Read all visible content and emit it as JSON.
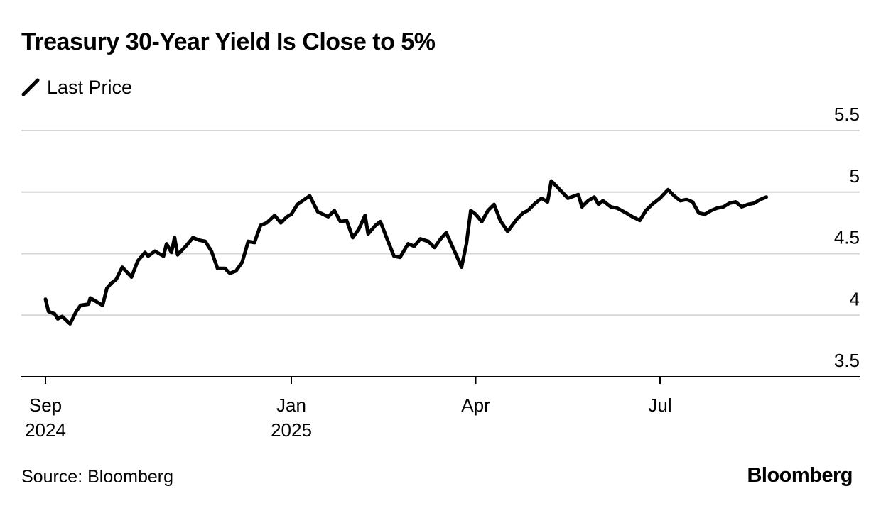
{
  "chart_data": {
    "type": "line",
    "title": "Treasury 30-Year Yield Is Close to 5%",
    "legend": [
      "Last Price"
    ],
    "source": "Source: Bloomberg",
    "brand": "Bloomberg",
    "xlabel": "",
    "ylabel": "",
    "ylim": [
      3.5,
      5.5
    ],
    "yticks": [
      3.5,
      4,
      4.5,
      5,
      5.5
    ],
    "xticks": [
      {
        "month": 0,
        "line1": "Sep",
        "line2": "2024"
      },
      {
        "month": 4,
        "line1": "Jan",
        "line2": "2025"
      },
      {
        "month": 7,
        "line1": "Apr",
        "line2": ""
      },
      {
        "month": 10,
        "line1": "Jul",
        "line2": ""
      }
    ],
    "series": [
      {
        "name": "Last Price",
        "color": "#000000",
        "points": [
          [
            0.0,
            4.13
          ],
          [
            0.05,
            4.03
          ],
          [
            0.15,
            4.01
          ],
          [
            0.2,
            3.97
          ],
          [
            0.27,
            3.99
          ],
          [
            0.4,
            3.93
          ],
          [
            0.5,
            4.03
          ],
          [
            0.57,
            4.08
          ],
          [
            0.7,
            4.09
          ],
          [
            0.73,
            4.14
          ],
          [
            0.83,
            4.11
          ],
          [
            0.93,
            4.08
          ],
          [
            1.0,
            4.22
          ],
          [
            1.07,
            4.26
          ],
          [
            1.15,
            4.29
          ],
          [
            1.25,
            4.39
          ],
          [
            1.4,
            4.31
          ],
          [
            1.5,
            4.44
          ],
          [
            1.62,
            4.51
          ],
          [
            1.67,
            4.48
          ],
          [
            1.78,
            4.52
          ],
          [
            1.92,
            4.48
          ],
          [
            1.97,
            4.58
          ],
          [
            2.05,
            4.51
          ],
          [
            2.1,
            4.63
          ],
          [
            2.15,
            4.49
          ],
          [
            2.3,
            4.57
          ],
          [
            2.4,
            4.63
          ],
          [
            2.5,
            4.61
          ],
          [
            2.6,
            4.6
          ],
          [
            2.7,
            4.52
          ],
          [
            2.8,
            4.38
          ],
          [
            2.92,
            4.38
          ],
          [
            3.0,
            4.34
          ],
          [
            3.1,
            4.36
          ],
          [
            3.2,
            4.43
          ],
          [
            3.3,
            4.6
          ],
          [
            3.4,
            4.59
          ],
          [
            3.5,
            4.73
          ],
          [
            3.6,
            4.75
          ],
          [
            3.73,
            4.81
          ],
          [
            3.83,
            4.75
          ],
          [
            3.93,
            4.8
          ],
          [
            4.0,
            4.82
          ],
          [
            4.1,
            4.9
          ],
          [
            4.3,
            4.97
          ],
          [
            4.43,
            4.84
          ],
          [
            4.6,
            4.8
          ],
          [
            4.7,
            4.85
          ],
          [
            4.8,
            4.76
          ],
          [
            4.9,
            4.77
          ],
          [
            5.0,
            4.63
          ],
          [
            5.1,
            4.7
          ],
          [
            5.2,
            4.81
          ],
          [
            5.25,
            4.66
          ],
          [
            5.37,
            4.73
          ],
          [
            5.45,
            4.76
          ],
          [
            5.55,
            4.63
          ],
          [
            5.67,
            4.48
          ],
          [
            5.77,
            4.47
          ],
          [
            5.9,
            4.58
          ],
          [
            6.0,
            4.56
          ],
          [
            6.1,
            4.62
          ],
          [
            6.23,
            4.6
          ],
          [
            6.33,
            4.55
          ],
          [
            6.43,
            4.62
          ],
          [
            6.52,
            4.67
          ],
          [
            6.62,
            4.56
          ],
          [
            6.7,
            4.47
          ],
          [
            6.77,
            4.39
          ],
          [
            6.85,
            4.58
          ],
          [
            6.92,
            4.85
          ],
          [
            7.0,
            4.82
          ],
          [
            7.1,
            4.76
          ],
          [
            7.2,
            4.85
          ],
          [
            7.3,
            4.9
          ],
          [
            7.4,
            4.77
          ],
          [
            7.52,
            4.68
          ],
          [
            7.67,
            4.78
          ],
          [
            7.77,
            4.83
          ],
          [
            7.85,
            4.85
          ],
          [
            7.97,
            4.91
          ],
          [
            8.07,
            4.95
          ],
          [
            8.17,
            4.92
          ],
          [
            8.23,
            5.09
          ],
          [
            8.33,
            5.04
          ],
          [
            8.5,
            4.95
          ],
          [
            8.67,
            4.98
          ],
          [
            8.73,
            4.88
          ],
          [
            8.83,
            4.93
          ],
          [
            8.93,
            4.96
          ],
          [
            9.0,
            4.9
          ],
          [
            9.07,
            4.93
          ],
          [
            9.2,
            4.88
          ],
          [
            9.3,
            4.87
          ],
          [
            9.45,
            4.83
          ],
          [
            9.55,
            4.8
          ],
          [
            9.67,
            4.77
          ],
          [
            9.77,
            4.85
          ],
          [
            9.87,
            4.9
          ],
          [
            10.0,
            4.95
          ],
          [
            10.13,
            5.02
          ],
          [
            10.23,
            4.97
          ],
          [
            10.33,
            4.93
          ],
          [
            10.43,
            4.94
          ],
          [
            10.53,
            4.92
          ],
          [
            10.63,
            4.83
          ],
          [
            10.73,
            4.82
          ],
          [
            10.83,
            4.85
          ],
          [
            10.93,
            4.87
          ],
          [
            11.03,
            4.88
          ],
          [
            11.13,
            4.91
          ],
          [
            11.23,
            4.92
          ],
          [
            11.33,
            4.88
          ],
          [
            11.43,
            4.9
          ],
          [
            11.53,
            4.91
          ],
          [
            11.63,
            4.94
          ],
          [
            11.73,
            4.96
          ]
        ]
      }
    ]
  }
}
